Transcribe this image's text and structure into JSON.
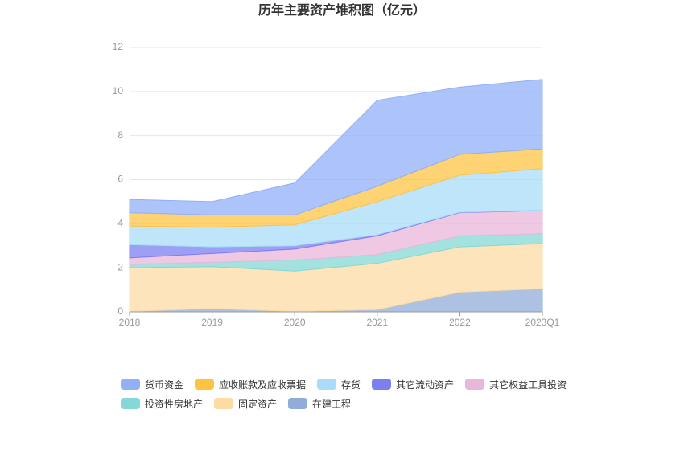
{
  "chart_data": {
    "type": "stacked_area",
    "title": "历年主要资产堆积图（亿元）",
    "categories": [
      "2018",
      "2019",
      "2020",
      "2021",
      "2022",
      "2023Q1"
    ],
    "ylim": [
      0,
      12
    ],
    "yticks": [
      0,
      2,
      4,
      6,
      8,
      10,
      12
    ],
    "grid": true,
    "series": [
      {
        "name": "货币资金",
        "color": "#91b0f9",
        "values": [
          0.6,
          0.6,
          1.45,
          3.9,
          3.05,
          3.15
        ]
      },
      {
        "name": "应收账款及应收票据",
        "color": "#fdc444",
        "values": [
          0.6,
          0.55,
          0.45,
          0.7,
          0.95,
          0.9
        ]
      },
      {
        "name": "存货",
        "color": "#a9dcf8",
        "values": [
          0.85,
          0.9,
          0.95,
          1.5,
          1.68,
          1.88
        ]
      },
      {
        "name": "其它流动资产",
        "color": "#7b7ff0",
        "values": [
          0.6,
          0.3,
          0.15,
          0.05,
          0.02,
          0.02
        ]
      },
      {
        "name": "其它权益工具投资",
        "color": "#e9b7d9",
        "values": [
          0.3,
          0.4,
          0.5,
          0.85,
          1.05,
          1.05
        ]
      },
      {
        "name": "投资性房地产",
        "color": "#86d8d6",
        "values": [
          0.15,
          0.2,
          0.5,
          0.4,
          0.5,
          0.45
        ]
      },
      {
        "name": "固定资产",
        "color": "#fddba3",
        "values": [
          1.98,
          1.9,
          1.83,
          2.1,
          2.05,
          2.05
        ]
      },
      {
        "name": "在建工程",
        "color": "#91acd8",
        "values": [
          0.02,
          0.15,
          0.02,
          0.1,
          0.9,
          1.05
        ]
      }
    ]
  }
}
